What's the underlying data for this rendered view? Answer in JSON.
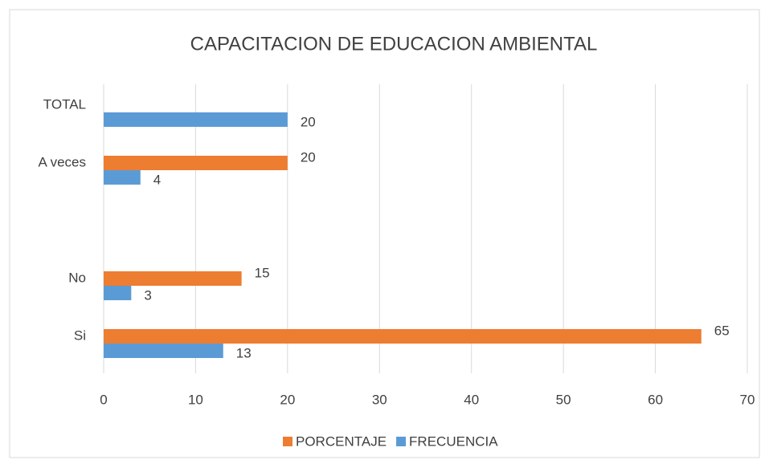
{
  "chart_data": {
    "type": "bar",
    "orientation": "horizontal",
    "title": "CAPACITACION DE EDUCACION AMBIENTAL",
    "categories": [
      "Si",
      "No",
      null,
      "A  veces",
      "TOTAL"
    ],
    "series": [
      {
        "name": "PORCENTAJE",
        "color": "#ed7d31",
        "values": [
          65,
          15,
          null,
          20,
          null
        ]
      },
      {
        "name": "FRECUENCIA",
        "color": "#5b9bd5",
        "values": [
          13,
          3,
          null,
          4,
          20
        ]
      }
    ],
    "xlim": [
      0,
      70
    ],
    "xticks": [
      0,
      10,
      20,
      30,
      40,
      50,
      60,
      70
    ],
    "grid": true,
    "legend": "bottom"
  }
}
